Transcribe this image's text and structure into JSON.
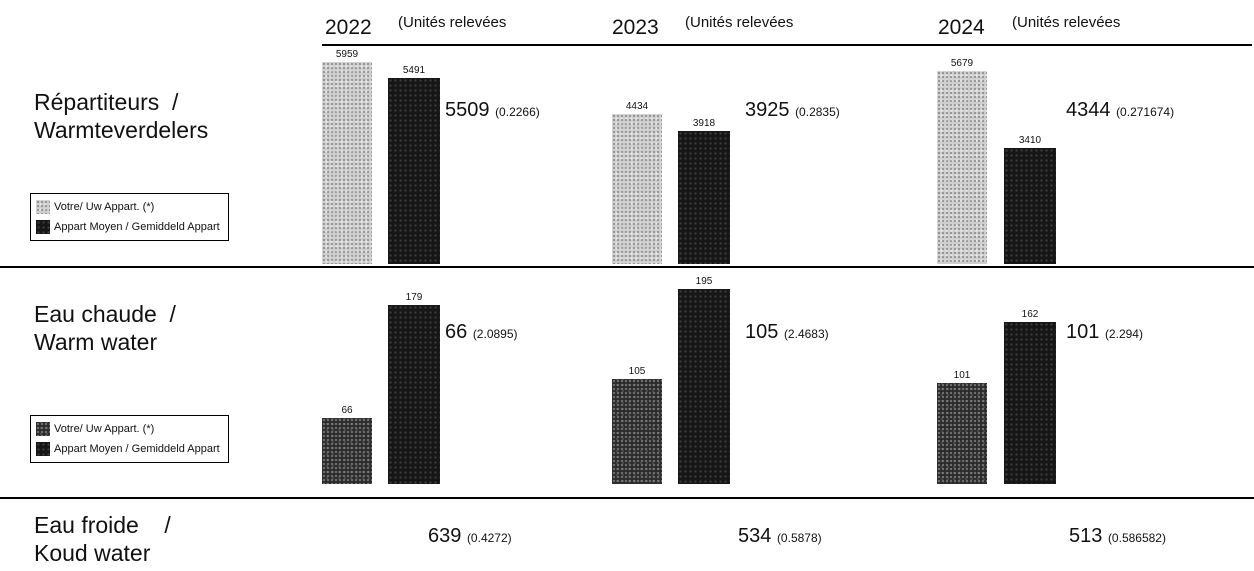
{
  "header": {
    "columns": [
      {
        "year": "2022",
        "note": "(Unités relevées"
      },
      {
        "year": "2023",
        "note": "(Unités relevées"
      },
      {
        "year": "2024",
        "note": "(Unités relevées"
      }
    ]
  },
  "rows": [
    {
      "label_line1": "Répartiteurs  /",
      "label_line2": "Warmteverdelers"
    },
    {
      "label_line1": "Eau chaude  /",
      "label_line2": "Warm water"
    },
    {
      "label_line1": "Eau froide    /",
      "label_line2": "Koud water"
    }
  ],
  "legends": [
    {
      "items": [
        "Votre/ Uw Appart. (*)",
        "Appart Moyen / Gemiddeld Appart"
      ]
    },
    {
      "items": [
        "Votre/ Uw Appart. (*)",
        "Appart Moyen / Gemiddeld Appart"
      ]
    }
  ],
  "summary": {
    "repartiteurs": [
      {
        "main": "5509",
        "sub": "(0.2266)"
      },
      {
        "main": "3925",
        "sub": "(0.2835)"
      },
      {
        "main": "4344",
        "sub": "(0.271674)"
      }
    ],
    "eau_chaude": [
      {
        "main": "66",
        "sub": "(2.0895)"
      },
      {
        "main": "105",
        "sub": "(2.4683)"
      },
      {
        "main": "101",
        "sub": "(2.294)"
      }
    ],
    "eau_froide": [
      {
        "main": "639",
        "sub": "(0.4272)"
      },
      {
        "main": "534",
        "sub": "(0.5878)"
      },
      {
        "main": "513",
        "sub": "(0.586582)"
      }
    ]
  },
  "chart_data": [
    {
      "type": "bar",
      "categories": [
        "2022",
        "2023",
        "2024"
      ],
      "series": [
        {
          "name": "Votre/ Uw Appart. (*)",
          "values": [
            5959,
            4434,
            5679
          ]
        },
        {
          "name": "Appart Moyen / Gemiddeld Appart",
          "values": [
            5491,
            3918,
            3410
          ]
        }
      ],
      "value_labels": {
        "votre": [
          "5959",
          "4434",
          "5679"
        ],
        "moyen": [
          "5491",
          "3918",
          "3410"
        ]
      },
      "ylim": [
        0,
        5959
      ],
      "legend": "bottom-left"
    },
    {
      "type": "bar",
      "categories": [
        "2022",
        "2023",
        "2024"
      ],
      "series": [
        {
          "name": "Votre/ Uw Appart. (*)",
          "values": [
            66,
            105,
            101
          ]
        },
        {
          "name": "Appart Moyen / Gemiddeld Appart",
          "values": [
            179,
            195,
            162
          ]
        }
      ],
      "value_labels": {
        "votre": [
          "66",
          "105",
          "101"
        ],
        "moyen": [
          "179",
          "195",
          "162"
        ]
      },
      "ylim": [
        0,
        195
      ],
      "legend": "bottom-left"
    }
  ]
}
